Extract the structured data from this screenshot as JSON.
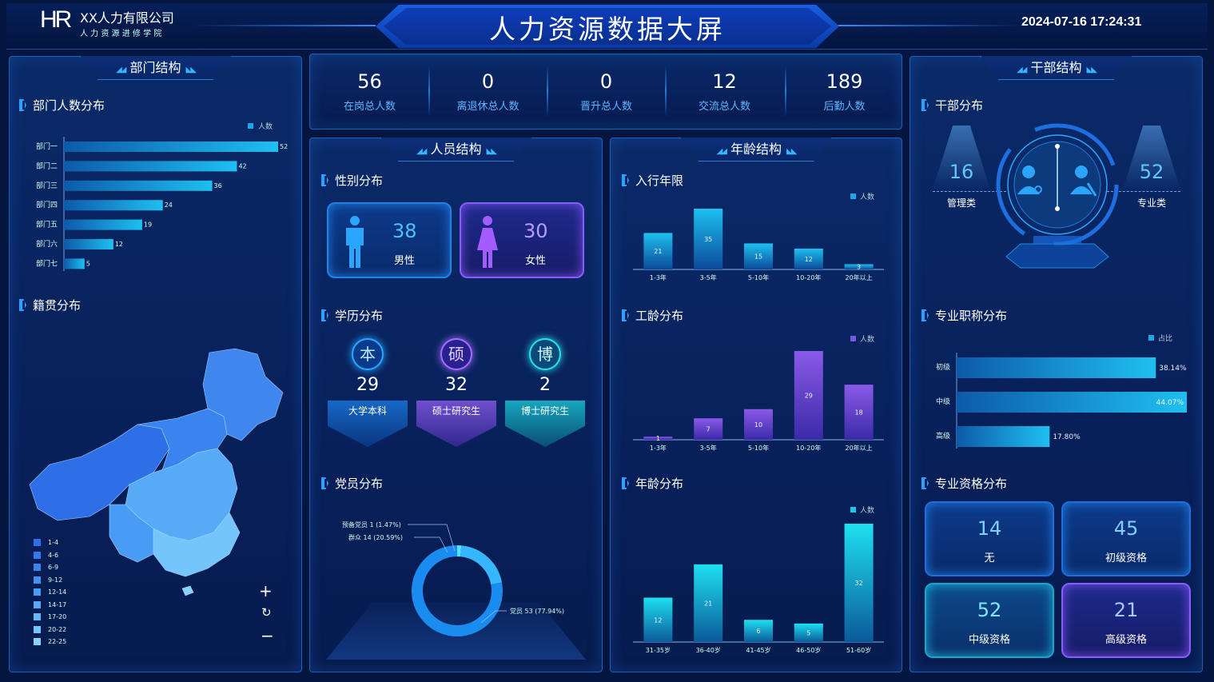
{
  "header": {
    "logo_mark": "HR",
    "company": "XX人力有限公司",
    "subtitle": "人 力 资 源 进 修 学 院",
    "title": "人力资源数据大屏",
    "datetime": "2024-07-16 17:24:31"
  },
  "stats": [
    {
      "value": "56",
      "label": "在岗总人数"
    },
    {
      "value": "0",
      "label": "离退休总人数"
    },
    {
      "value": "0",
      "label": "晋升总人数"
    },
    {
      "value": "12",
      "label": "交流总人数"
    },
    {
      "value": "189",
      "label": "后勤人数"
    }
  ],
  "left": {
    "panel_title": "部门结构",
    "dept_title": "部门人数分布",
    "dept_legend": "人数",
    "native_title": "籍贯分布",
    "map_legend": [
      "1-4",
      "4-6",
      "6-9",
      "9-12",
      "12-14",
      "14-17",
      "17-20",
      "20-22",
      "22-25"
    ],
    "map_colors": [
      "#2e6fe8",
      "#3479ec",
      "#3a84ef",
      "#4190f2",
      "#489cf4",
      "#56aaf6",
      "#64b8f8",
      "#74c6fa",
      "#86d4fc"
    ]
  },
  "personnel": {
    "panel_title": "人员结构",
    "gender_title": "性别分布",
    "male_value": "38",
    "male_label": "男性",
    "female_value": "30",
    "female_label": "女性",
    "edu_title": "学历分布",
    "edu": [
      {
        "char": "本",
        "value": "29",
        "label": "大学本科"
      },
      {
        "char": "硕",
        "value": "32",
        "label": "硕士研究生"
      },
      {
        "char": "博",
        "value": "2",
        "label": "博士研究生"
      }
    ],
    "party_title": "党员分布"
  },
  "age_panel": {
    "panel_title": "年龄结构",
    "entry_title": "入行年限",
    "work_title": "工龄分布",
    "age_title": "年龄分布"
  },
  "cadre": {
    "panel_title": "干部结构",
    "dist_title": "干部分布",
    "mgmt_value": "16",
    "mgmt_label": "管理类",
    "pro_value": "52",
    "pro_label": "专业类",
    "title_title": "专业职称分布",
    "qual_title": "专业资格分布",
    "qual": [
      {
        "value": "14",
        "label": "无"
      },
      {
        "value": "45",
        "label": "初级资格"
      },
      {
        "value": "52",
        "label": "中级资格"
      },
      {
        "value": "21",
        "label": "高级资格"
      }
    ]
  },
  "map_controls": {
    "zoom_in": "+",
    "reset": "↻",
    "zoom_out": "−"
  },
  "chart_data": [
    {
      "id": "dept",
      "type": "bar",
      "orientation": "horizontal",
      "categories": [
        "部门一",
        "部门二",
        "部门三",
        "部门四",
        "部门五",
        "部门六",
        "部门七"
      ],
      "series": [
        {
          "name": "人数",
          "values": [
            52,
            42,
            36,
            24,
            19,
            12,
            5
          ]
        }
      ],
      "xlim": [
        0,
        52
      ],
      "legend": "top-right"
    },
    {
      "id": "entry",
      "type": "bar",
      "categories": [
        "1-3年",
        "3-5年",
        "5-10年",
        "10-20年",
        "20年以上"
      ],
      "series": [
        {
          "name": "人数",
          "values": [
            21,
            35,
            15,
            12,
            3
          ]
        }
      ],
      "ylim": [
        0,
        35
      ],
      "legend": "top-right"
    },
    {
      "id": "work",
      "type": "bar",
      "categories": [
        "1-3年",
        "3-5年",
        "5-10年",
        "10-20年",
        "20年以上"
      ],
      "series": [
        {
          "name": "人数",
          "values": [
            1,
            7,
            10,
            29,
            18
          ]
        }
      ],
      "ylim": [
        0,
        29
      ],
      "legend": "top-right"
    },
    {
      "id": "age",
      "type": "bar",
      "categories": [
        "31-35岁",
        "36-40岁",
        "41-45岁",
        "46-50岁",
        "51-60岁"
      ],
      "series": [
        {
          "name": "人数",
          "values": [
            12,
            21,
            6,
            5,
            32
          ]
        }
      ],
      "ylim": [
        0,
        32
      ],
      "legend": "top-right"
    },
    {
      "id": "party",
      "type": "pie",
      "donut": true,
      "slices": [
        {
          "label": "预备党员",
          "value": 1,
          "pct": "1.47%",
          "text": "预备党员 1 (1.47%)"
        },
        {
          "label": "群众",
          "value": 14,
          "pct": "20.59%",
          "text": "群众 14 (20.59%)"
        },
        {
          "label": "党员",
          "value": 53,
          "pct": "77.94%",
          "text": "党员 53 (77.94%)"
        }
      ]
    },
    {
      "id": "title",
      "type": "bar",
      "orientation": "horizontal",
      "categories": [
        "初级",
        "中级",
        "高级"
      ],
      "series": [
        {
          "name": "占比",
          "values": [
            38.14,
            44.07,
            17.8
          ],
          "labels": [
            "38.14%",
            "44.07%",
            "17.80%"
          ]
        }
      ],
      "xlim": [
        0,
        44.07
      ],
      "legend": "top-right"
    }
  ]
}
